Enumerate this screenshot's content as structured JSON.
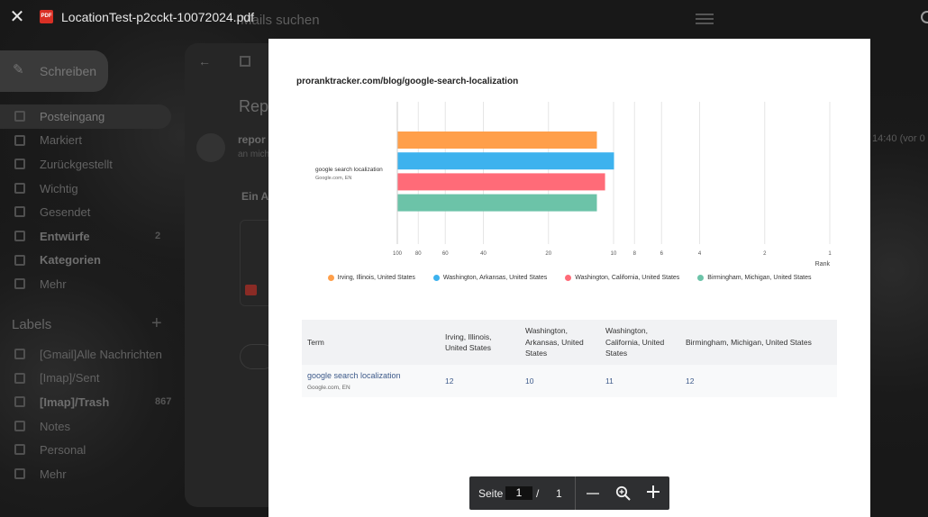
{
  "viewer": {
    "file_title": "LocationTest-p2cckt-10072024.pdf",
    "pdf_badge": "PDF"
  },
  "background": {
    "search_placeholder": "-Mails suchen",
    "compose_label": "Schreiben",
    "nav": [
      {
        "label": "Posteingang",
        "bold": false,
        "active": true,
        "count": ""
      },
      {
        "label": "Markiert",
        "bold": false,
        "active": false,
        "count": ""
      },
      {
        "label": "Zurückgestellt",
        "bold": false,
        "active": false,
        "count": ""
      },
      {
        "label": "Wichtig",
        "bold": false,
        "active": false,
        "count": ""
      },
      {
        "label": "Gesendet",
        "bold": false,
        "active": false,
        "count": ""
      },
      {
        "label": "Entwürfe",
        "bold": true,
        "active": false,
        "count": "2"
      },
      {
        "label": "Kategorien",
        "bold": true,
        "active": false,
        "count": ""
      },
      {
        "label": "Mehr",
        "bold": false,
        "active": false,
        "count": ""
      }
    ],
    "labels_heading": "Labels",
    "labels": [
      {
        "label": "[Gmail]Alle Nachrichten",
        "bold": false,
        "count": ""
      },
      {
        "label": "[Imap]/Sent",
        "bold": false,
        "count": ""
      },
      {
        "label": "[Imap]/Trash",
        "bold": true,
        "count": "867"
      },
      {
        "label": "Notes",
        "bold": false,
        "count": ""
      },
      {
        "label": "Personal",
        "bold": false,
        "count": ""
      },
      {
        "label": "Mehr",
        "bold": false,
        "count": ""
      }
    ],
    "subject_fragment": "Rep",
    "sender_fragment": "repor",
    "to_fragment": "an mich",
    "body_fragment": "Ein A",
    "time_fragment": "14:40 (vor 0 M"
  },
  "pdf": {
    "url": "proranktracker.com/blog/google-search-localization",
    "chart_data": {
      "type": "bar",
      "orientation": "horizontal",
      "categories": [
        "google search localization"
      ],
      "category_subtitle": "Google.com, EN",
      "series": [
        {
          "name": "Irving, Illinois, United States",
          "values": [
            12
          ],
          "color": "#FF9F4A"
        },
        {
          "name": "Washington, Arkansas, United States",
          "values": [
            10
          ],
          "color": "#3DB2EE"
        },
        {
          "name": "Washington, California, United States",
          "values": [
            11
          ],
          "color": "#FF6B78"
        },
        {
          "name": "Birmingham, Michigan, United States",
          "values": [
            12
          ],
          "color": "#6CC3A8"
        }
      ],
      "x_ticks": [
        100,
        80,
        60,
        40,
        20,
        10,
        8,
        6,
        4,
        2,
        1
      ],
      "xlabel": "Rank",
      "x_reversed": true,
      "x_scale": "log",
      "grid": true,
      "legend_position": "bottom"
    },
    "table": {
      "headers": [
        "Term",
        "Irving, Illinois, United States",
        "Washington, Arkansas, United States",
        "Washington, California, United States",
        "Birmingham, Michigan, United States"
      ],
      "rows": [
        {
          "term": "google search localization",
          "sub": "Google.com, EN",
          "values": [
            "12",
            "10",
            "11",
            "12"
          ]
        }
      ]
    }
  },
  "toolbar": {
    "page_label": "Seite",
    "current_page": "1",
    "separator": "/",
    "total_pages": "1"
  }
}
